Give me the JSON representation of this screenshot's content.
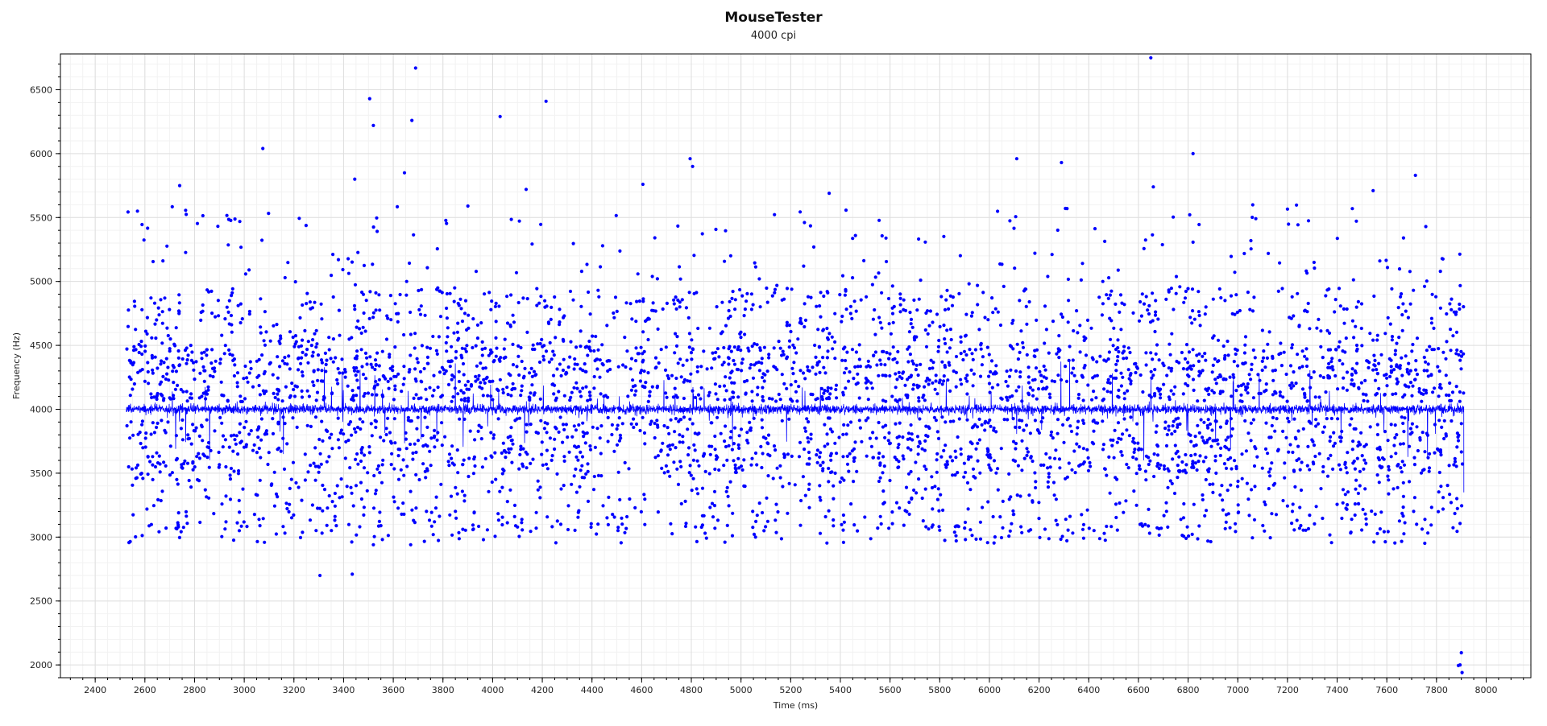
{
  "chart_data": {
    "type": "scatter",
    "title": "MouseTester",
    "subtitle": "4000 cpi",
    "xlabel": "Time (ms)",
    "ylabel": "Frequency (Hz)",
    "xlim": [
      2260,
      8180
    ],
    "ylim": [
      1900,
      6780
    ],
    "xticks": [
      2400,
      2600,
      2800,
      3000,
      3200,
      3400,
      3600,
      3800,
      4000,
      4200,
      4400,
      4600,
      4800,
      5000,
      5200,
      5400,
      5600,
      5800,
      6000,
      6200,
      6400,
      6600,
      6800,
      7000,
      7200,
      7400,
      7600,
      7800,
      8000
    ],
    "yticks": [
      2000,
      2500,
      3000,
      3500,
      4000,
      4500,
      5000,
      5500,
      6000,
      6500
    ],
    "grid": true,
    "series_color": "#0000ff",
    "x_range": [
      2525,
      7910
    ],
    "baseline": 4000,
    "outliers": [
      {
        "x": 3435,
        "y": 2710
      },
      {
        "x": 3505,
        "y": 6430
      },
      {
        "x": 3520,
        "y": 6220
      },
      {
        "x": 3690,
        "y": 6670
      },
      {
        "x": 3675,
        "y": 6260
      },
      {
        "x": 4030,
        "y": 6290
      },
      {
        "x": 4215,
        "y": 6410
      },
      {
        "x": 3075,
        "y": 6040
      },
      {
        "x": 4795,
        "y": 5960
      },
      {
        "x": 4805,
        "y": 5900
      },
      {
        "x": 6110,
        "y": 5960
      },
      {
        "x": 6290,
        "y": 5930
      },
      {
        "x": 6650,
        "y": 6750
      },
      {
        "x": 6820,
        "y": 6000
      },
      {
        "x": 7715,
        "y": 5830
      },
      {
        "x": 2740,
        "y": 5750
      },
      {
        "x": 2570,
        "y": 5550
      },
      {
        "x": 3445,
        "y": 5800
      },
      {
        "x": 3645,
        "y": 5850
      },
      {
        "x": 4135,
        "y": 5720
      },
      {
        "x": 4605,
        "y": 5760
      },
      {
        "x": 5355,
        "y": 5690
      },
      {
        "x": 6660,
        "y": 5740
      },
      {
        "x": 7545,
        "y": 5710
      },
      {
        "x": 2735,
        "y": 3080
      },
      {
        "x": 3520,
        "y": 2940
      },
      {
        "x": 3670,
        "y": 2940
      },
      {
        "x": 6645,
        "y": 3030
      },
      {
        "x": 7720,
        "y": 3100
      },
      {
        "x": 3305,
        "y": 2700
      },
      {
        "x": 7895,
        "y": 2000
      },
      {
        "x": 7900,
        "y": 2095
      },
      {
        "x": 7903,
        "y": 1940
      },
      {
        "x": 7888,
        "y": 1995
      }
    ]
  }
}
